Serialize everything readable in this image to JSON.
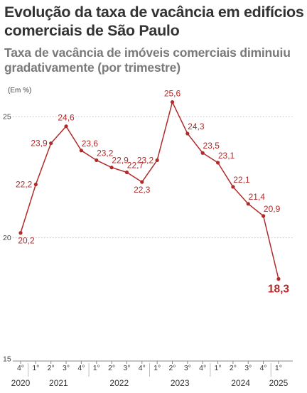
{
  "header": {
    "title": "Evolução da taxa de vacância em edifícios comerciais de São Paulo",
    "subtitle": "Taxa de vacância de imóveis comerciais diminuiu gradativamente (por trimestre)",
    "unit": "(Em %)"
  },
  "chart_data": {
    "type": "line",
    "title": "Evolução da taxa de vacância em edifícios comerciais de São Paulo",
    "subtitle": "Taxa de vacância de imóveis comerciais diminuiu gradativamente (por trimestre)",
    "ylabel": "(Em %)",
    "xlabel": "",
    "ylim": [
      15,
      26
    ],
    "yticks": [
      15,
      20,
      25
    ],
    "grid": true,
    "legend": "none",
    "color": "#b02a2a",
    "x": [
      "4°",
      "1°",
      "2°",
      "3°",
      "4°",
      "1°",
      "2°",
      "3°",
      "4°",
      "1°",
      "2°",
      "3°",
      "4°",
      "1°",
      "2°",
      "3°",
      "4°",
      "1°"
    ],
    "years": [
      {
        "label": "2020",
        "from": 0,
        "to": 0
      },
      {
        "label": "2021",
        "from": 1,
        "to": 4
      },
      {
        "label": "2022",
        "from": 5,
        "to": 8
      },
      {
        "label": "2023",
        "from": 9,
        "to": 12
      },
      {
        "label": "2024",
        "from": 13,
        "to": 16
      },
      {
        "label": "2025",
        "from": 17,
        "to": 17
      }
    ],
    "values": [
      20.2,
      22.2,
      23.9,
      24.6,
      23.6,
      23.2,
      22.9,
      22.7,
      22.3,
      23.2,
      25.6,
      24.3,
      23.5,
      23.1,
      22.1,
      21.4,
      20.9,
      18.3
    ],
    "labels": [
      "20,2",
      "22,2",
      "23,9",
      "24,6",
      "23,6",
      "23,2",
      "22,9",
      "22,7",
      "22,3",
      "23,2",
      "25,6",
      "24,3",
      "23,5",
      "23,1",
      "22,1",
      "21,4",
      "20,9",
      "18,3"
    ],
    "highlight_last": true
  }
}
